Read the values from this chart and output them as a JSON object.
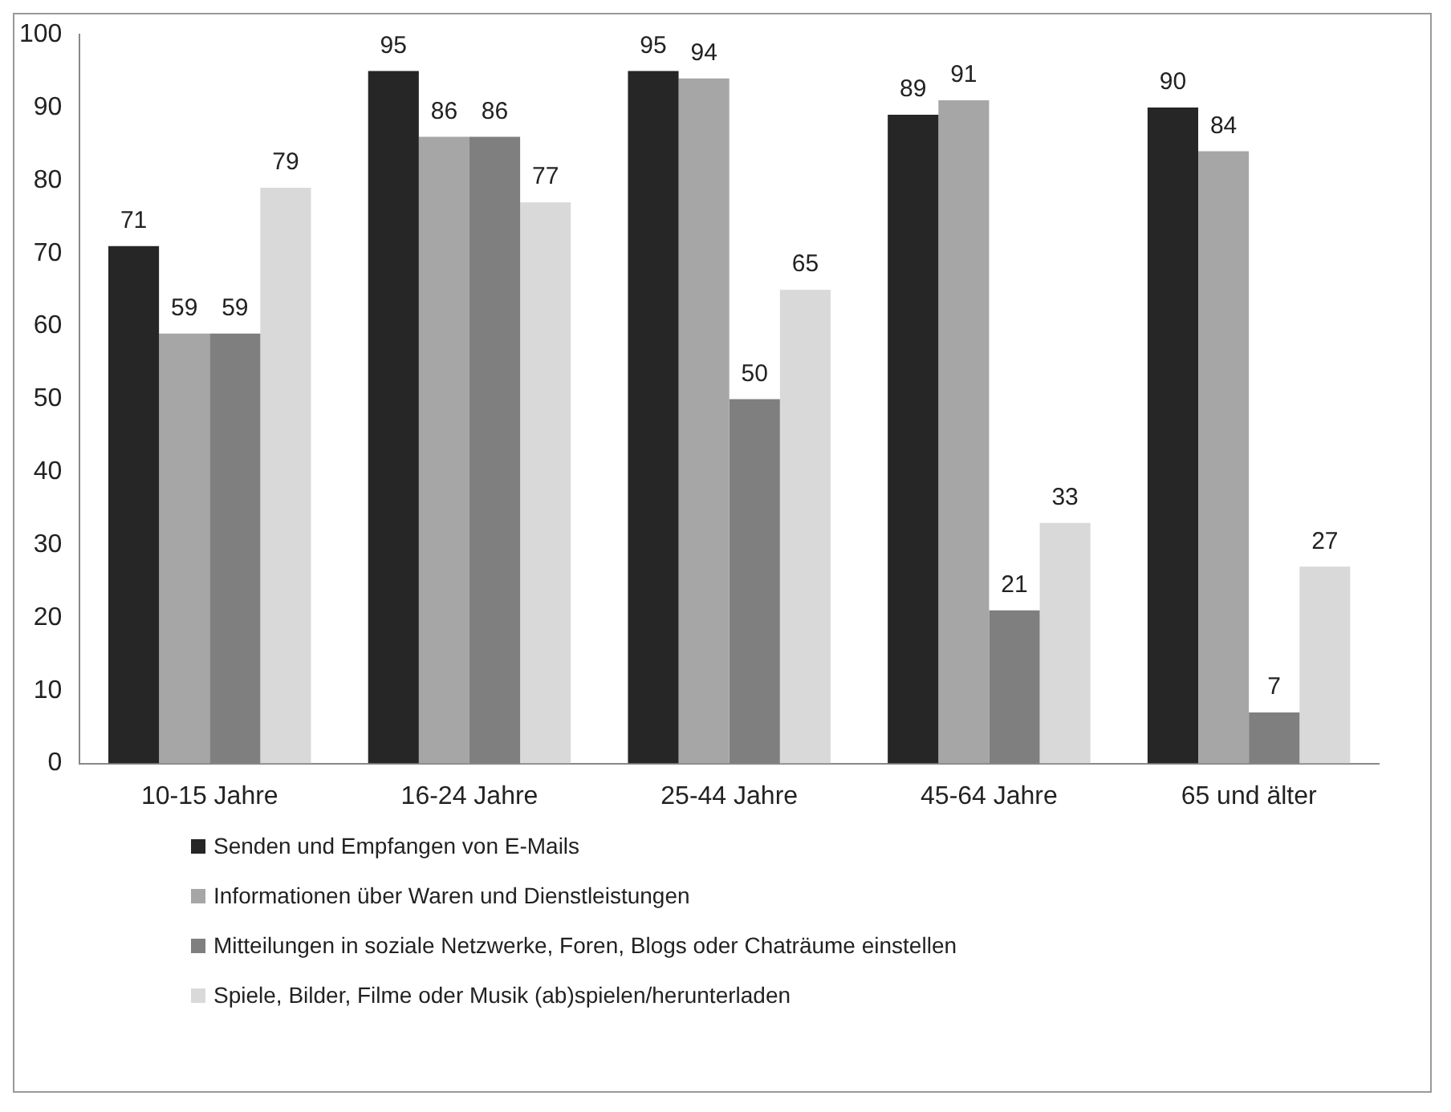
{
  "chart_data": {
    "type": "bar",
    "categories": [
      "10-15 Jahre",
      "16-24 Jahre",
      "25-44 Jahre",
      "45-64 Jahre",
      "65 und älter"
    ],
    "series": [
      {
        "name": "Senden und Empfangen von E-Mails",
        "color": "#262626",
        "values": [
          71,
          95,
          95,
          89,
          90
        ]
      },
      {
        "name": "Informationen über Waren und Dienstleistungen",
        "color": "#a6a6a6",
        "values": [
          59,
          86,
          94,
          91,
          84
        ]
      },
      {
        "name": "Mitteilungen in soziale Netzwerke, Foren, Blogs oder Chaträume einstellen",
        "color": "#7f7f7f",
        "values": [
          59,
          86,
          50,
          21,
          7
        ]
      },
      {
        "name": "Spiele, Bilder, Filme oder Musik (ab)spielen/herunterladen",
        "color": "#d9d9d9",
        "values": [
          79,
          77,
          65,
          33,
          27
        ]
      }
    ],
    "ylim": [
      0,
      100
    ],
    "yticks": [
      0,
      10,
      20,
      30,
      40,
      50,
      60,
      70,
      80,
      90,
      100
    ],
    "grid": false,
    "legend": "bottom",
    "data_labels": true
  }
}
